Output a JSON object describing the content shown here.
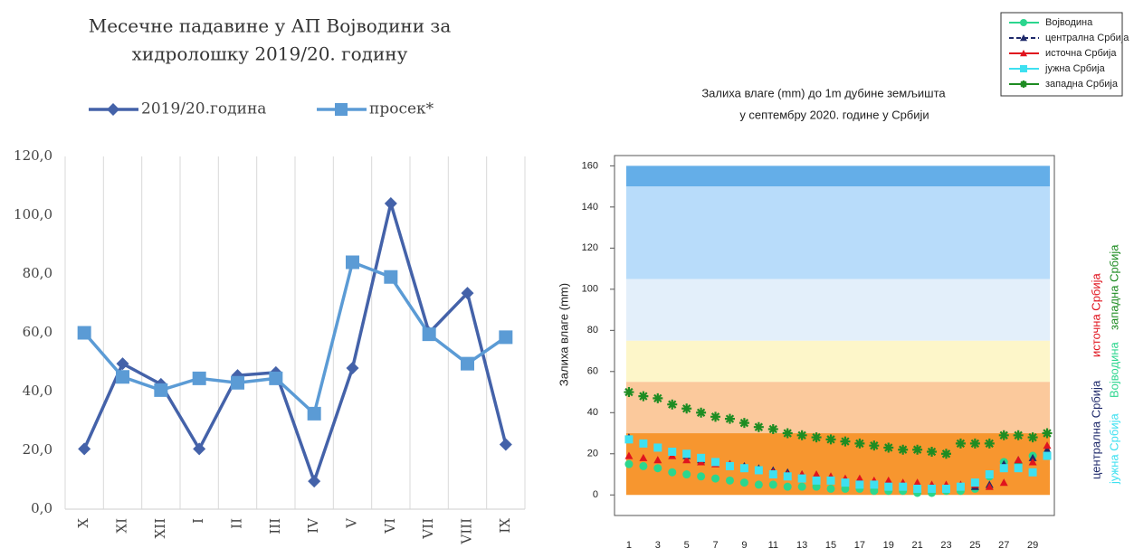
{
  "chart_data": [
    {
      "type": "line",
      "title": "Месечне падавине у АП Војводини за хидролошку 2019/20. годину",
      "categories": [
        "X",
        "XI",
        "XII",
        "I",
        "II",
        "III",
        "IV",
        "V",
        "VI",
        "VII",
        "VIII",
        "IX"
      ],
      "series": [
        {
          "name": "2019/20.година",
          "color": "#4462a9",
          "marker": "diamond",
          "values": [
            20.5,
            49.5,
            42.5,
            20.5,
            45.5,
            46.5,
            9.5,
            48,
            104,
            60,
            73.5,
            22
          ]
        },
        {
          "name": "просек*",
          "color": "#5b9bd5",
          "marker": "square",
          "values": [
            60,
            45,
            40.5,
            44.5,
            43,
            44.5,
            32.5,
            84,
            79,
            59.5,
            49.5,
            58.5
          ]
        }
      ],
      "ylim": [
        0,
        120
      ],
      "yticks": [
        {
          "value": 0,
          "label": "0,0"
        },
        {
          "value": 20,
          "label": "20,0"
        },
        {
          "value": 40,
          "label": "40,0"
        },
        {
          "value": 60,
          "label": "60,0"
        },
        {
          "value": 80,
          "label": "80,0"
        },
        {
          "value": 100,
          "label": "100,0"
        },
        {
          "value": 120,
          "label": "120,0"
        }
      ],
      "grid": "vertical",
      "legend": "top"
    },
    {
      "type": "scatter",
      "title": "Залиха влаге (mm) до 1m дубине земљишта у септембру 2020. године у Србији",
      "title_lines": [
        "Залиха влаге (mm) до 1m дубине земљишта",
        "у септембру 2020. године у Србији"
      ],
      "y_label": "Залиха влаге (mm)",
      "x": [
        1,
        2,
        3,
        4,
        5,
        6,
        7,
        8,
        9,
        10,
        11,
        12,
        13,
        14,
        15,
        16,
        17,
        18,
        19,
        20,
        21,
        22,
        23,
        24,
        25,
        26,
        27,
        28,
        29,
        30
      ],
      "series": [
        {
          "name": "Војводина",
          "color": "#2bd68e",
          "marker": "circle",
          "values": [
            15,
            14,
            13,
            11,
            10,
            9,
            8,
            7,
            6,
            5,
            5,
            4,
            4,
            4,
            3,
            3,
            3,
            2,
            2,
            2,
            1,
            1,
            2,
            2,
            3,
            9,
            16,
            15,
            19,
            19
          ]
        },
        {
          "name": "централна Србија",
          "color": "#1f2a6b",
          "marker": "triangle",
          "values": [
            28,
            25,
            23,
            21,
            19,
            17,
            16,
            15,
            14,
            13,
            12,
            11,
            10,
            9,
            8,
            7,
            6,
            6,
            5,
            5,
            4,
            4,
            4,
            4,
            4,
            5,
            15,
            17,
            18,
            22
          ]
        },
        {
          "name": "источна Србија",
          "color": "#e0141e",
          "marker": "triangle",
          "values": [
            19,
            18,
            17,
            19,
            17,
            16,
            15,
            15,
            13,
            12,
            11,
            10,
            10,
            10,
            9,
            8,
            8,
            7,
            7,
            6,
            6,
            5,
            5,
            5,
            5,
            4,
            6,
            17,
            16,
            24
          ]
        },
        {
          "name": "јужна Србија",
          "color": "#3ee0f0",
          "marker": "square",
          "values": [
            27,
            25,
            23,
            21,
            20,
            18,
            16,
            14,
            13,
            12,
            10,
            9,
            8,
            7,
            7,
            6,
            5,
            5,
            4,
            4,
            3,
            3,
            3,
            4,
            6,
            10,
            13,
            13,
            11,
            19
          ]
        },
        {
          "name": "западна Србија",
          "color": "#1e8c22",
          "marker": "star",
          "values": [
            50,
            48,
            47,
            44,
            42,
            40,
            38,
            37,
            35,
            33,
            32,
            30,
            29,
            28,
            27,
            26,
            25,
            24,
            23,
            22,
            22,
            21,
            20,
            25,
            25,
            25,
            29,
            29,
            28,
            30
          ]
        }
      ],
      "bands": [
        {
          "from": 0,
          "to": 30,
          "color": "#f7962f"
        },
        {
          "from": 30,
          "to": 55,
          "color": "#fbc99c"
        },
        {
          "from": 55,
          "to": 75,
          "color": "#fdf6c9"
        },
        {
          "from": 75,
          "to": 105,
          "color": "#e3effa"
        },
        {
          "from": 105,
          "to": 150,
          "color": "#b8dcfa"
        },
        {
          "from": 150,
          "to": 160,
          "color": "#64aee8"
        }
      ],
      "xlim": [
        0,
        30.5
      ],
      "xticks": [
        1,
        3,
        5,
        7,
        9,
        11,
        13,
        15,
        17,
        19,
        21,
        23,
        25,
        27,
        29
      ],
      "ylim": [
        -10,
        165
      ],
      "yticks": [
        0,
        20,
        40,
        60,
        80,
        100,
        120,
        140,
        160
      ],
      "legend": "top-right"
    }
  ]
}
